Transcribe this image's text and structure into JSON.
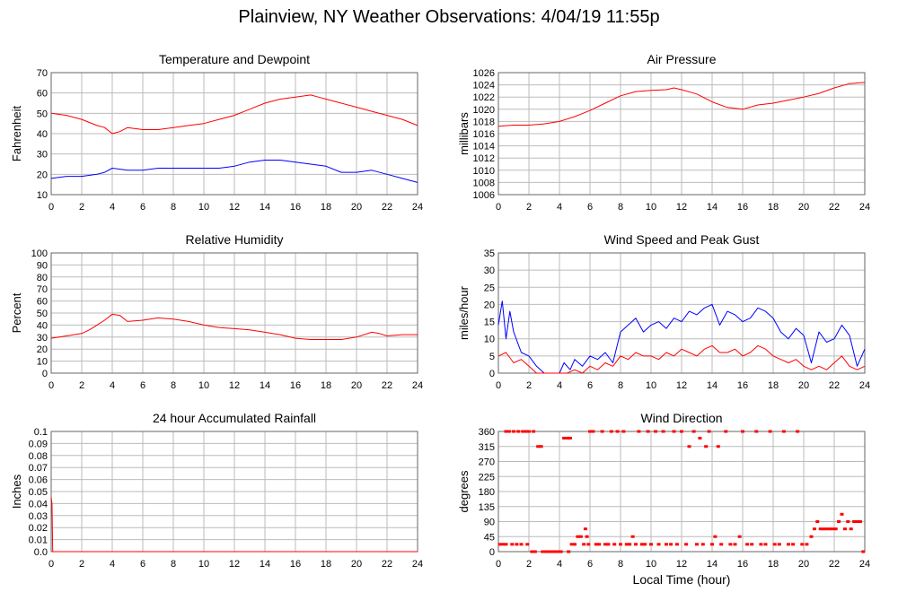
{
  "page": {
    "title": "Plainview, NY Weather Observations: 4/04/19 11:55p"
  },
  "colors": {
    "temperature": "#ff0000",
    "dewpoint": "#0000ff",
    "grid": "#bbbbbb",
    "frame": "#666666"
  },
  "chart_data": [
    {
      "id": "temp",
      "type": "line",
      "title": "Temperature and Dewpoint",
      "xlabel": "",
      "ylabel": "Fahrenheit",
      "xlim": [
        0,
        24
      ],
      "ylim": [
        10,
        70
      ],
      "yticks": [
        10,
        20,
        30,
        40,
        50,
        60,
        70
      ],
      "xticks": [
        0,
        2,
        4,
        6,
        8,
        10,
        12,
        14,
        16,
        18,
        20,
        22,
        24
      ],
      "grid": true,
      "series": [
        {
          "color": "#ff0000",
          "x": [
            0,
            1,
            2,
            3,
            3.5,
            4,
            4.5,
            5,
            6,
            7,
            8,
            9,
            10,
            11,
            12,
            13,
            14,
            15,
            16,
            17,
            17.5,
            18,
            19,
            20,
            21,
            22,
            23,
            24
          ],
          "y": [
            50,
            49,
            47,
            44,
            43,
            40,
            41,
            43,
            42,
            42,
            43,
            44,
            45,
            47,
            49,
            52,
            55,
            57,
            58,
            59,
            58,
            57,
            55,
            53,
            51,
            49,
            47,
            44
          ]
        },
        {
          "color": "#0000ff",
          "x": [
            0,
            1,
            2,
            3,
            3.5,
            4,
            5,
            6,
            7,
            8,
            9,
            10,
            11,
            12,
            13,
            14,
            15,
            16,
            17,
            18,
            19,
            20,
            21,
            22,
            23,
            24
          ],
          "y": [
            18,
            19,
            19,
            20,
            21,
            23,
            22,
            22,
            23,
            23,
            23,
            23,
            23,
            24,
            26,
            27,
            27,
            26,
            25,
            24,
            21,
            21,
            22,
            20,
            18,
            16
          ]
        }
      ]
    },
    {
      "id": "pressure",
      "type": "line",
      "title": "Air Pressure",
      "xlabel": "",
      "ylabel": "millibars",
      "xlim": [
        0,
        24
      ],
      "ylim": [
        1006,
        1026
      ],
      "yticks": [
        1006,
        1008,
        1010,
        1012,
        1014,
        1016,
        1018,
        1020,
        1022,
        1024,
        1026
      ],
      "xticks": [
        0,
        2,
        4,
        6,
        8,
        10,
        12,
        14,
        16,
        18,
        20,
        22,
        24
      ],
      "grid": true,
      "series": [
        {
          "color": "#ff0000",
          "x": [
            0,
            1,
            2,
            3,
            4,
            5,
            6,
            7,
            8,
            9,
            10,
            11,
            11.5,
            12,
            13,
            14,
            15,
            16,
            17,
            18,
            19,
            20,
            21,
            22,
            23,
            24
          ],
          "y": [
            1017.2,
            1017.4,
            1017.4,
            1017.6,
            1018.0,
            1018.8,
            1019.8,
            1021.0,
            1022.2,
            1022.9,
            1023.1,
            1023.2,
            1023.5,
            1023.2,
            1022.5,
            1021.2,
            1020.3,
            1020.0,
            1020.7,
            1021.0,
            1021.5,
            1022.0,
            1022.6,
            1023.5,
            1024.2,
            1024.4
          ]
        }
      ]
    },
    {
      "id": "humidity",
      "type": "line",
      "title": "Relative Humidity",
      "xlabel": "",
      "ylabel": "Percent",
      "xlim": [
        0,
        24
      ],
      "ylim": [
        0,
        100
      ],
      "yticks": [
        0,
        10,
        20,
        30,
        40,
        50,
        60,
        70,
        80,
        90,
        100
      ],
      "xticks": [
        0,
        2,
        4,
        6,
        8,
        10,
        12,
        14,
        16,
        18,
        20,
        22,
        24
      ],
      "grid": true,
      "series": [
        {
          "color": "#ff0000",
          "x": [
            0,
            1,
            2,
            2.5,
            3,
            3.5,
            4,
            4.5,
            5,
            6,
            7,
            8,
            9,
            10,
            11,
            12,
            13,
            14,
            15,
            16,
            17,
            18,
            19,
            20,
            21,
            21.5,
            22,
            23,
            24
          ],
          "y": [
            29,
            31,
            33,
            36,
            40,
            44,
            49,
            48,
            43,
            44,
            46,
            45,
            43,
            40,
            38,
            37,
            36,
            34,
            32,
            29,
            28,
            28,
            28,
            30,
            34,
            33,
            31,
            32,
            32
          ]
        }
      ]
    },
    {
      "id": "wind",
      "type": "line",
      "title": "Wind Speed and Peak Gust",
      "xlabel": "",
      "ylabel": "miles/hour",
      "xlim": [
        0,
        24
      ],
      "ylim": [
        0,
        35
      ],
      "yticks": [
        0,
        5,
        10,
        15,
        20,
        25,
        30,
        35
      ],
      "xticks": [
        0,
        2,
        4,
        6,
        8,
        10,
        12,
        14,
        16,
        18,
        20,
        22,
        24
      ],
      "grid": true,
      "series": [
        {
          "color": "#0000ff",
          "x": [
            0,
            0.25,
            0.5,
            0.75,
            1,
            1.5,
            2,
            2.5,
            3,
            3.5,
            4,
            4.3,
            4.7,
            5,
            5.5,
            6,
            6.5,
            7,
            7.5,
            8,
            8.5,
            9,
            9.5,
            10,
            10.5,
            11,
            11.5,
            12,
            12.5,
            13,
            13.5,
            14,
            14.5,
            15,
            15.5,
            16,
            16.5,
            17,
            17.5,
            18,
            18.5,
            19,
            19.5,
            20,
            20.5,
            21,
            21.5,
            22,
            22.5,
            23,
            23.5,
            24
          ],
          "y": [
            14,
            21,
            10,
            18,
            12,
            6,
            5,
            2,
            0,
            0,
            0,
            3,
            1,
            4,
            2,
            5,
            4,
            6,
            3,
            12,
            14,
            16,
            12,
            14,
            15,
            13,
            16,
            15,
            18,
            17,
            19,
            20,
            14,
            18,
            17,
            15,
            16,
            19,
            18,
            16,
            12,
            10,
            13,
            11,
            3,
            12,
            9,
            10,
            14,
            11,
            2,
            7
          ]
        },
        {
          "color": "#ff0000",
          "x": [
            0,
            0.5,
            1,
            1.5,
            2,
            2.5,
            3,
            3.5,
            4,
            4.5,
            5,
            5.5,
            6,
            6.5,
            7,
            7.5,
            8,
            8.5,
            9,
            9.5,
            10,
            10.5,
            11,
            11.5,
            12,
            12.5,
            13,
            13.5,
            14,
            14.5,
            15,
            15.5,
            16,
            16.5,
            17,
            17.5,
            18,
            18.5,
            19,
            19.5,
            20,
            20.5,
            21,
            21.5,
            22,
            22.5,
            23,
            23.5,
            24
          ],
          "y": [
            5,
            6,
            3,
            4,
            2,
            0,
            0,
            0,
            0,
            0,
            1,
            0,
            2,
            1,
            3,
            2,
            5,
            4,
            6,
            5,
            5,
            4,
            6,
            5,
            7,
            6,
            5,
            7,
            8,
            6,
            6,
            7,
            5,
            6,
            8,
            7,
            5,
            4,
            3,
            4,
            2,
            1,
            2,
            1,
            3,
            5,
            2,
            1,
            2
          ]
        }
      ]
    },
    {
      "id": "rain",
      "type": "line",
      "title": "24 hour Accumulated Rainfall",
      "xlabel": "",
      "ylabel": "Inches",
      "xlim": [
        0,
        24
      ],
      "ylim": [
        0,
        0.1
      ],
      "yticks": [
        0.0,
        0.01,
        0.02,
        0.03,
        0.04,
        0.05,
        0.06,
        0.07,
        0.08,
        0.09,
        0.1
      ],
      "ytick_labels": [
        "0.0",
        "0.01",
        "0.02",
        "0.03",
        "0.04",
        "0.05",
        "0.06",
        "0.07",
        "0.08",
        "0.09",
        "0.1"
      ],
      "xticks": [
        0,
        2,
        4,
        6,
        8,
        10,
        12,
        14,
        16,
        18,
        20,
        22,
        24
      ],
      "grid": true,
      "series": [
        {
          "color": "#ff0000",
          "x": [
            0,
            0.05,
            0.1,
            24
          ],
          "y": [
            0.045,
            0.04,
            0,
            0
          ]
        }
      ]
    },
    {
      "id": "direction",
      "type": "scatter",
      "title": "Wind Direction",
      "xlabel": "Local Time (hour)",
      "ylabel": "degrees",
      "xlim": [
        0,
        24
      ],
      "ylim": [
        0,
        360
      ],
      "yticks": [
        0,
        45,
        90,
        135,
        180,
        225,
        270,
        315,
        360
      ],
      "xticks": [
        0,
        2,
        4,
        6,
        8,
        10,
        12,
        14,
        16,
        18,
        20,
        22,
        24
      ],
      "grid": true,
      "series": [
        {
          "color": "#ff0000",
          "points": [
            [
              0.1,
              22
            ],
            [
              0.3,
              22
            ],
            [
              0.5,
              360
            ],
            [
              0.5,
              22
            ],
            [
              0.7,
              360
            ],
            [
              0.9,
              22
            ],
            [
              1.0,
              360
            ],
            [
              1.2,
              22
            ],
            [
              1.3,
              360
            ],
            [
              1.5,
              22
            ],
            [
              1.6,
              360
            ],
            [
              1.8,
              360
            ],
            [
              1.9,
              22
            ],
            [
              2.0,
              360
            ],
            [
              2.2,
              0
            ],
            [
              2.3,
              360
            ],
            [
              2.4,
              0
            ],
            [
              2.6,
              315
            ],
            [
              2.8,
              315
            ],
            [
              2.9,
              0
            ],
            [
              3.1,
              0
            ],
            [
              3.3,
              0
            ],
            [
              3.5,
              0
            ],
            [
              3.7,
              0
            ],
            [
              3.9,
              0
            ],
            [
              4.1,
              0
            ],
            [
              4.3,
              340
            ],
            [
              4.5,
              340
            ],
            [
              4.6,
              0
            ],
            [
              4.7,
              340
            ],
            [
              4.8,
              22
            ],
            [
              5.0,
              22
            ],
            [
              5.2,
              45
            ],
            [
              5.4,
              45
            ],
            [
              5.6,
              22
            ],
            [
              5.7,
              68
            ],
            [
              5.8,
              45
            ],
            [
              5.9,
              22
            ],
            [
              6.0,
              360
            ],
            [
              6.2,
              360
            ],
            [
              6.4,
              22
            ],
            [
              6.6,
              22
            ],
            [
              6.8,
              360
            ],
            [
              7.0,
              22
            ],
            [
              7.2,
              22
            ],
            [
              7.4,
              360
            ],
            [
              7.6,
              22
            ],
            [
              7.8,
              360
            ],
            [
              8.0,
              22
            ],
            [
              8.2,
              360
            ],
            [
              8.4,
              22
            ],
            [
              8.6,
              22
            ],
            [
              8.8,
              45
            ],
            [
              9.0,
              22
            ],
            [
              9.2,
              360
            ],
            [
              9.4,
              22
            ],
            [
              9.6,
              22
            ],
            [
              9.8,
              360
            ],
            [
              10.0,
              22
            ],
            [
              10.3,
              360
            ],
            [
              10.5,
              22
            ],
            [
              10.8,
              360
            ],
            [
              11.0,
              22
            ],
            [
              11.3,
              22
            ],
            [
              11.5,
              360
            ],
            [
              11.7,
              22
            ],
            [
              12.0,
              360
            ],
            [
              12.3,
              22
            ],
            [
              12.5,
              315
            ],
            [
              12.8,
              360
            ],
            [
              13.0,
              22
            ],
            [
              13.2,
              340
            ],
            [
              13.4,
              22
            ],
            [
              13.6,
              315
            ],
            [
              13.8,
              360
            ],
            [
              14.0,
              22
            ],
            [
              14.2,
              45
            ],
            [
              14.4,
              315
            ],
            [
              14.6,
              22
            ],
            [
              14.9,
              360
            ],
            [
              15.2,
              22
            ],
            [
              15.5,
              22
            ],
            [
              15.8,
              45
            ],
            [
              16.0,
              360
            ],
            [
              16.3,
              22
            ],
            [
              16.6,
              22
            ],
            [
              16.9,
              360
            ],
            [
              17.2,
              22
            ],
            [
              17.5,
              22
            ],
            [
              17.8,
              360
            ],
            [
              18.1,
              22
            ],
            [
              18.4,
              22
            ],
            [
              18.7,
              360
            ],
            [
              19.0,
              22
            ],
            [
              19.3,
              22
            ],
            [
              19.6,
              360
            ],
            [
              19.9,
              22
            ],
            [
              20.2,
              22
            ],
            [
              20.5,
              45
            ],
            [
              20.7,
              68
            ],
            [
              20.9,
              90
            ],
            [
              21.1,
              68
            ],
            [
              21.3,
              68
            ],
            [
              21.5,
              68
            ],
            [
              21.7,
              68
            ],
            [
              21.9,
              68
            ],
            [
              22.1,
              68
            ],
            [
              22.3,
              90
            ],
            [
              22.5,
              112
            ],
            [
              22.7,
              68
            ],
            [
              22.9,
              90
            ],
            [
              23.1,
              68
            ],
            [
              23.3,
              90
            ],
            [
              23.5,
              90
            ],
            [
              23.7,
              90
            ],
            [
              23.9,
              0
            ]
          ]
        }
      ]
    }
  ]
}
